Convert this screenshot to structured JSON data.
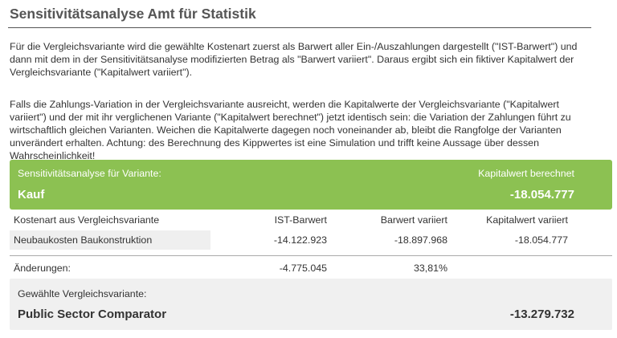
{
  "header": {
    "title": "Sensitivitätsanalyse Amt für Statistik"
  },
  "paragraphs": [
    "Für die Vergleichsvariante wird die gewählte Kostenart zuerst als Barwert aller Ein-/Auszahlungen dargestellt (\"IST-Barwert\") und dann mit dem in der Sensitivitätsanalyse modifizierten Betrag als \"Barwert variiert\". Daraus ergibt sich ein fiktiver Kapitalwert der Vergleichsvariante (\"Kapitalwert variiert\").",
    "Falls die Zahlungs-Variation in der Vergleichsvariante ausreicht, werden die Kapitalwerte der Vergleichsvariante (\"Kapitalwert variiert\") und der mit ihr verglichenen Variante (\"Kapitalwert berechnet\") jetzt identisch sein: die Variation der Zahlungen führt zu wirtschaftlich gleichen Varianten. Weichen die Kapitalwerte dagegen noch voneinander ab, bleibt die Rangfolge der Varianten unverändert erhalten. Achtung: des Berechnung des Kippwertes ist eine Simulation und trifft keine Aussage über dessen Wahrscheinlichkeit!"
  ],
  "variant_panel": {
    "label": "Sensitivitätsanalyse für Variante:",
    "variant": "Kauf",
    "value_label": "Kapitalwert berechnet",
    "value": "-18.054.777"
  },
  "table": {
    "header": [
      "Kostenart aus Vergleichsvariante",
      "IST-Barwert",
      "Barwert variiert",
      "Kapitalwert variiert"
    ],
    "rows": [
      [
        "Neubaukosten Baukonstruktion",
        "-14.122.923",
        "-18.897.968",
        "-18.054.777"
      ]
    ]
  },
  "changes": {
    "label": "Änderungen:",
    "values": [
      "-4.775.045",
      "33,81%"
    ]
  },
  "comparator": {
    "label": "Gewählte Vergleichsvariante:",
    "name": "Public Sector Comparator",
    "value": "-13.279.732"
  }
}
